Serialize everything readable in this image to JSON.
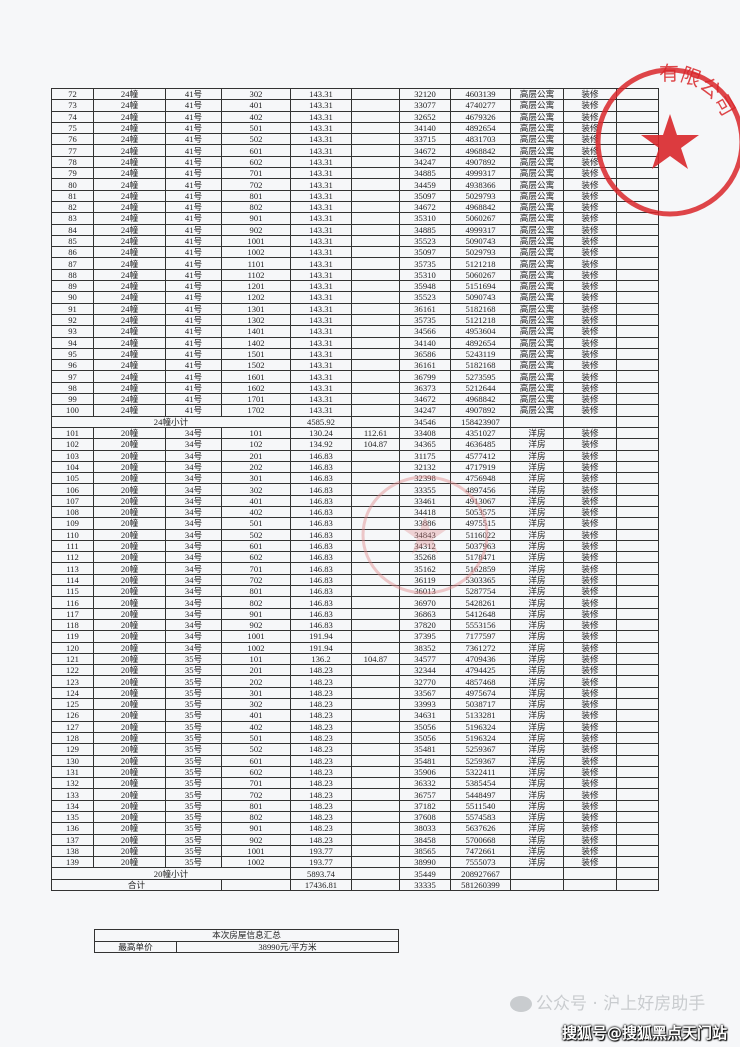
{
  "table": {
    "rows": [
      [
        "72",
        "24幢",
        "41号",
        "302",
        "143.31",
        "",
        "32120",
        "4603139",
        "高层公寓",
        "装修",
        ""
      ],
      [
        "73",
        "24幢",
        "41号",
        "401",
        "143.31",
        "",
        "33077",
        "4740277",
        "高层公寓",
        "装修",
        ""
      ],
      [
        "74",
        "24幢",
        "41号",
        "402",
        "143.31",
        "",
        "32652",
        "4679326",
        "高层公寓",
        "装修",
        ""
      ],
      [
        "75",
        "24幢",
        "41号",
        "501",
        "143.31",
        "",
        "34140",
        "4892654",
        "高层公寓",
        "装修",
        ""
      ],
      [
        "76",
        "24幢",
        "41号",
        "502",
        "143.31",
        "",
        "33715",
        "4831703",
        "高层公寓",
        "装修",
        ""
      ],
      [
        "77",
        "24幢",
        "41号",
        "601",
        "143.31",
        "",
        "34672",
        "4968842",
        "高层公寓",
        "装修",
        ""
      ],
      [
        "78",
        "24幢",
        "41号",
        "602",
        "143.31",
        "",
        "34247",
        "4907892",
        "高层公寓",
        "装修",
        ""
      ],
      [
        "79",
        "24幢",
        "41号",
        "701",
        "143.31",
        "",
        "34885",
        "4999317",
        "高层公寓",
        "装修",
        ""
      ],
      [
        "80",
        "24幢",
        "41号",
        "702",
        "143.31",
        "",
        "34459",
        "4938366",
        "高层公寓",
        "装修",
        ""
      ],
      [
        "81",
        "24幢",
        "41号",
        "801",
        "143.31",
        "",
        "35097",
        "5029793",
        "高层公寓",
        "装修",
        ""
      ],
      [
        "82",
        "24幢",
        "41号",
        "802",
        "143.31",
        "",
        "34672",
        "4968842",
        "高层公寓",
        "装修",
        ""
      ],
      [
        "83",
        "24幢",
        "41号",
        "901",
        "143.31",
        "",
        "35310",
        "5060267",
        "高层公寓",
        "装修",
        ""
      ],
      [
        "84",
        "24幢",
        "41号",
        "902",
        "143.31",
        "",
        "34885",
        "4999317",
        "高层公寓",
        "装修",
        ""
      ],
      [
        "85",
        "24幢",
        "41号",
        "1001",
        "143.31",
        "",
        "35523",
        "5090743",
        "高层公寓",
        "装修",
        ""
      ],
      [
        "86",
        "24幢",
        "41号",
        "1002",
        "143.31",
        "",
        "35097",
        "5029793",
        "高层公寓",
        "装修",
        ""
      ],
      [
        "87",
        "24幢",
        "41号",
        "1101",
        "143.31",
        "",
        "35735",
        "5121218",
        "高层公寓",
        "装修",
        ""
      ],
      [
        "88",
        "24幢",
        "41号",
        "1102",
        "143.31",
        "",
        "35310",
        "5060267",
        "高层公寓",
        "装修",
        ""
      ],
      [
        "89",
        "24幢",
        "41号",
        "1201",
        "143.31",
        "",
        "35948",
        "5151694",
        "高层公寓",
        "装修",
        ""
      ],
      [
        "90",
        "24幢",
        "41号",
        "1202",
        "143.31",
        "",
        "35523",
        "5090743",
        "高层公寓",
        "装修",
        ""
      ],
      [
        "91",
        "24幢",
        "41号",
        "1301",
        "143.31",
        "",
        "36161",
        "5182168",
        "高层公寓",
        "装修",
        ""
      ],
      [
        "92",
        "24幢",
        "41号",
        "1302",
        "143.31",
        "",
        "35735",
        "5121218",
        "高层公寓",
        "装修",
        ""
      ],
      [
        "93",
        "24幢",
        "41号",
        "1401",
        "143.31",
        "",
        "34566",
        "4953604",
        "高层公寓",
        "装修",
        ""
      ],
      [
        "94",
        "24幢",
        "41号",
        "1402",
        "143.31",
        "",
        "34140",
        "4892654",
        "高层公寓",
        "装修",
        ""
      ],
      [
        "95",
        "24幢",
        "41号",
        "1501",
        "143.31",
        "",
        "36586",
        "5243119",
        "高层公寓",
        "装修",
        ""
      ],
      [
        "96",
        "24幢",
        "41号",
        "1502",
        "143.31",
        "",
        "36161",
        "5182168",
        "高层公寓",
        "装修",
        ""
      ],
      [
        "97",
        "24幢",
        "41号",
        "1601",
        "143.31",
        "",
        "36799",
        "5273595",
        "高层公寓",
        "装修",
        ""
      ],
      [
        "98",
        "24幢",
        "41号",
        "1602",
        "143.31",
        "",
        "36373",
        "5212644",
        "高层公寓",
        "装修",
        ""
      ],
      [
        "99",
        "24幢",
        "41号",
        "1701",
        "143.31",
        "",
        "34672",
        "4968842",
        "高层公寓",
        "装修",
        ""
      ],
      [
        "100",
        "24幢",
        "41号",
        "1702",
        "143.31",
        "",
        "34247",
        "4907892",
        "高层公寓",
        "装修",
        ""
      ],
      {
        "subtotal": "24幢小计",
        "span": 4,
        "cells": [
          "4585.92",
          "",
          "34546",
          "158423907",
          "",
          "",
          ""
        ]
      },
      [
        "101",
        "20幢",
        "34号",
        "101",
        "130.24",
        "112.61",
        "33408",
        "4351027",
        "洋房",
        "装修",
        ""
      ],
      [
        "102",
        "20幢",
        "34号",
        "102",
        "134.92",
        "104.87",
        "34365",
        "4636485",
        "洋房",
        "装修",
        ""
      ],
      [
        "103",
        "20幢",
        "34号",
        "201",
        "146.83",
        "",
        "31175",
        "4577412",
        "洋房",
        "装修",
        ""
      ],
      [
        "104",
        "20幢",
        "34号",
        "202",
        "146.83",
        "",
        "32132",
        "4717919",
        "洋房",
        "装修",
        ""
      ],
      [
        "105",
        "20幢",
        "34号",
        "301",
        "146.83",
        "",
        "32398",
        "4756948",
        "洋房",
        "装修",
        ""
      ],
      [
        "106",
        "20幢",
        "34号",
        "302",
        "146.83",
        "",
        "33355",
        "4897456",
        "洋房",
        "装修",
        ""
      ],
      [
        "107",
        "20幢",
        "34号",
        "401",
        "146.83",
        "",
        "33461",
        "4913067",
        "洋房",
        "装修",
        ""
      ],
      [
        "108",
        "20幢",
        "34号",
        "402",
        "146.83",
        "",
        "34418",
        "5053575",
        "洋房",
        "装修",
        ""
      ],
      [
        "109",
        "20幢",
        "34号",
        "501",
        "146.83",
        "",
        "33886",
        "4975515",
        "洋房",
        "装修",
        ""
      ],
      [
        "110",
        "20幢",
        "34号",
        "502",
        "146.83",
        "",
        "34843",
        "5116022",
        "洋房",
        "装修",
        ""
      ],
      [
        "111",
        "20幢",
        "34号",
        "601",
        "146.83",
        "",
        "34312",
        "5037963",
        "洋房",
        "装修",
        ""
      ],
      [
        "112",
        "20幢",
        "34号",
        "602",
        "146.83",
        "",
        "35268",
        "5178471",
        "洋房",
        "装修",
        ""
      ],
      [
        "113",
        "20幢",
        "34号",
        "701",
        "146.83",
        "",
        "35162",
        "5162859",
        "洋房",
        "装修",
        ""
      ],
      [
        "114",
        "20幢",
        "34号",
        "702",
        "146.83",
        "",
        "36119",
        "5303365",
        "洋房",
        "装修",
        ""
      ],
      [
        "115",
        "20幢",
        "34号",
        "801",
        "146.83",
        "",
        "36013",
        "5287754",
        "洋房",
        "装修",
        ""
      ],
      [
        "116",
        "20幢",
        "34号",
        "802",
        "146.83",
        "",
        "36970",
        "5428261",
        "洋房",
        "装修",
        ""
      ],
      [
        "117",
        "20幢",
        "34号",
        "901",
        "146.83",
        "",
        "36863",
        "5412648",
        "洋房",
        "装修",
        ""
      ],
      [
        "118",
        "20幢",
        "34号",
        "902",
        "146.83",
        "",
        "37820",
        "5553156",
        "洋房",
        "装修",
        ""
      ],
      [
        "119",
        "20幢",
        "34号",
        "1001",
        "191.94",
        "",
        "37395",
        "7177597",
        "洋房",
        "装修",
        ""
      ],
      [
        "120",
        "20幢",
        "34号",
        "1002",
        "191.94",
        "",
        "38352",
        "7361272",
        "洋房",
        "装修",
        ""
      ],
      [
        "121",
        "20幢",
        "35号",
        "101",
        "136.2",
        "104.87",
        "34577",
        "4709436",
        "洋房",
        "装修",
        ""
      ],
      [
        "122",
        "20幢",
        "35号",
        "201",
        "148.23",
        "",
        "32344",
        "4794425",
        "洋房",
        "装修",
        ""
      ],
      [
        "123",
        "20幢",
        "35号",
        "202",
        "148.23",
        "",
        "32770",
        "4857468",
        "洋房",
        "装修",
        ""
      ],
      [
        "124",
        "20幢",
        "35号",
        "301",
        "148.23",
        "",
        "33567",
        "4975674",
        "洋房",
        "装修",
        ""
      ],
      [
        "125",
        "20幢",
        "35号",
        "302",
        "148.23",
        "",
        "33993",
        "5038717",
        "洋房",
        "装修",
        ""
      ],
      [
        "126",
        "20幢",
        "35号",
        "401",
        "148.23",
        "",
        "34631",
        "5133281",
        "洋房",
        "装修",
        ""
      ],
      [
        "127",
        "20幢",
        "35号",
        "402",
        "148.23",
        "",
        "35056",
        "5196324",
        "洋房",
        "装修",
        ""
      ],
      [
        "128",
        "20幢",
        "35号",
        "501",
        "148.23",
        "",
        "35056",
        "5196324",
        "洋房",
        "装修",
        ""
      ],
      [
        "129",
        "20幢",
        "35号",
        "502",
        "148.23",
        "",
        "35481",
        "5259367",
        "洋房",
        "装修",
        ""
      ],
      [
        "130",
        "20幢",
        "35号",
        "601",
        "148.23",
        "",
        "35481",
        "5259367",
        "洋房",
        "装修",
        ""
      ],
      [
        "131",
        "20幢",
        "35号",
        "602",
        "148.23",
        "",
        "35906",
        "5322411",
        "洋房",
        "装修",
        ""
      ],
      [
        "132",
        "20幢",
        "35号",
        "701",
        "148.23",
        "",
        "36332",
        "5385454",
        "洋房",
        "装修",
        ""
      ],
      [
        "133",
        "20幢",
        "35号",
        "702",
        "148.23",
        "",
        "36757",
        "5448497",
        "洋房",
        "装修",
        ""
      ],
      [
        "134",
        "20幢",
        "35号",
        "801",
        "148.23",
        "",
        "37182",
        "5511540",
        "洋房",
        "装修",
        ""
      ],
      [
        "135",
        "20幢",
        "35号",
        "802",
        "148.23",
        "",
        "37608",
        "5574583",
        "洋房",
        "装修",
        ""
      ],
      [
        "136",
        "20幢",
        "35号",
        "901",
        "148.23",
        "",
        "38033",
        "5637626",
        "洋房",
        "装修",
        ""
      ],
      [
        "137",
        "20幢",
        "35号",
        "902",
        "148.23",
        "",
        "38458",
        "5700668",
        "洋房",
        "装修",
        ""
      ],
      [
        "138",
        "20幢",
        "35号",
        "1001",
        "193.77",
        "",
        "38565",
        "7472661",
        "洋房",
        "装修",
        ""
      ],
      [
        "139",
        "20幢",
        "35号",
        "1002",
        "193.77",
        "",
        "38990",
        "7555073",
        "洋房",
        "装修",
        ""
      ],
      {
        "subtotal": "20幢小计",
        "span": 4,
        "cells": [
          "5893.74",
          "",
          "35449",
          "208927667",
          "",
          "",
          ""
        ]
      },
      {
        "subtotal": "合计",
        "span": 3,
        "cells": [
          "",
          "17436.81",
          "",
          "33335",
          "581260399",
          "",
          "",
          ""
        ]
      }
    ]
  },
  "summary": {
    "title": "本次房屋信息汇总",
    "label": "最高单价",
    "value": "38990元/平方米"
  },
  "seal": {
    "text": "有限公司",
    "color": "#d9262a"
  },
  "watermarks": {
    "wechat_icon": "wechat-icon",
    "line1": "公众号 · 沪上好房助手",
    "line2": "搜狐号@搜狐黑点天门站"
  }
}
